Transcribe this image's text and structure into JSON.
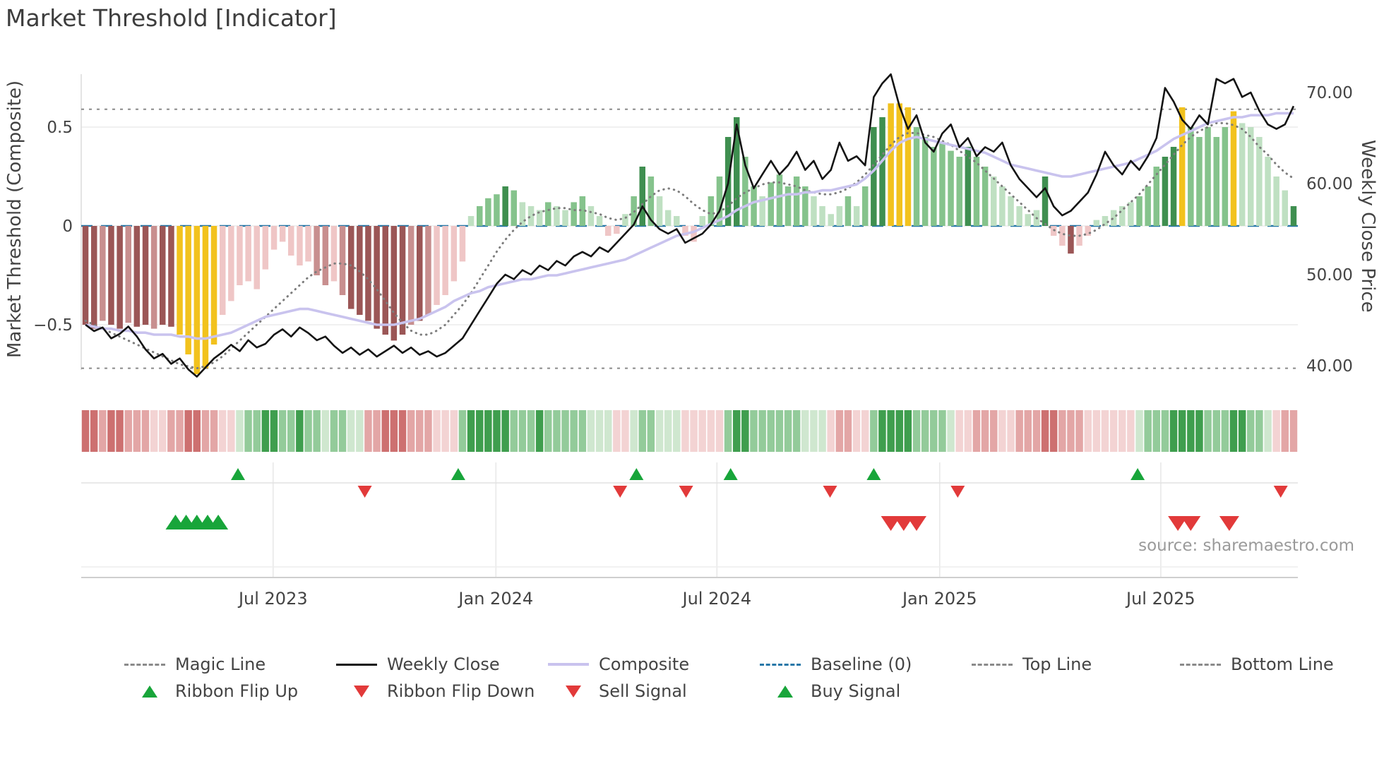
{
  "page": {
    "title": "Market Threshold [Indicator]",
    "source": "source: sharemaestro.com"
  },
  "chart_data": {
    "type": "mixed",
    "title": "Market Threshold [Indicator]",
    "x_axis": {
      "tick_weeks": [
        21.9,
        47.9,
        73.7,
        99.7,
        125.5
      ],
      "tick_labels": [
        "Jul 2023",
        "Jan 2024",
        "Jul 2024",
        "Jan 2025",
        "Jul 2025"
      ]
    },
    "left_axis": {
      "label": "Market Threshold (Composite)",
      "ticks": [
        0.5,
        0,
        -0.5
      ],
      "tick_labels": [
        "0.5",
        "0",
        "−0.5"
      ]
    },
    "right_axis": {
      "label": "Weekly Close Price",
      "ticks": [
        70,
        60,
        50,
        40
      ],
      "tick_labels": [
        "70.00",
        "60.00",
        "50.00",
        "40.00"
      ]
    },
    "top_line": 0.59,
    "bottom_line": -0.72,
    "baseline": 0,
    "bars": {
      "values": [
        -0.5,
        -0.52,
        -0.48,
        -0.5,
        -0.52,
        -0.49,
        -0.51,
        -0.5,
        -0.52,
        -0.5,
        -0.51,
        -0.55,
        -0.65,
        -0.75,
        -0.72,
        -0.6,
        -0.45,
        -0.38,
        -0.3,
        -0.28,
        -0.32,
        -0.22,
        -0.12,
        -0.08,
        -0.15,
        -0.2,
        -0.18,
        -0.25,
        -0.3,
        -0.28,
        -0.35,
        -0.42,
        -0.45,
        -0.48,
        -0.52,
        -0.55,
        -0.58,
        -0.55,
        -0.5,
        -0.48,
        -0.45,
        -0.4,
        -0.35,
        -0.28,
        -0.18,
        0.05,
        0.1,
        0.14,
        0.16,
        0.2,
        0.18,
        0.12,
        0.1,
        0.08,
        0.12,
        0.1,
        0.08,
        0.12,
        0.15,
        0.1,
        0.05,
        -0.05,
        -0.04,
        0.06,
        0.15,
        0.3,
        0.25,
        0.15,
        0.08,
        0.05,
        -0.05,
        -0.08,
        0.05,
        0.15,
        0.25,
        0.45,
        0.55,
        0.35,
        0.2,
        0.15,
        0.22,
        0.26,
        0.2,
        0.25,
        0.2,
        0.15,
        0.1,
        0.06,
        0.1,
        0.15,
        0.1,
        0.2,
        0.5,
        0.55,
        0.62,
        0.62,
        0.6,
        0.5,
        0.45,
        0.4,
        0.42,
        0.38,
        0.35,
        0.4,
        0.35,
        0.3,
        0.25,
        0.2,
        0.15,
        0.1,
        0.06,
        0.08,
        0.25,
        -0.05,
        -0.1,
        -0.14,
        -0.1,
        -0.05,
        0.03,
        0.05,
        0.08,
        0.1,
        0.12,
        0.15,
        0.2,
        0.3,
        0.35,
        0.4,
        0.6,
        0.5,
        0.45,
        0.5,
        0.45,
        0.5,
        0.58,
        0.52,
        0.5,
        0.45,
        0.35,
        0.25,
        0.18,
        0.1
      ],
      "colors": [
        "r3",
        "r3",
        "r2",
        "r3",
        "r3",
        "r2",
        "r3",
        "r3",
        "r2",
        "r3",
        "r3",
        "y",
        "y",
        "y",
        "y",
        "y",
        "r1",
        "r1",
        "r1",
        "r1",
        "r1",
        "r1",
        "r1",
        "r1",
        "r1",
        "r1",
        "r1",
        "r2",
        "r2",
        "r1",
        "r2",
        "r3",
        "r3",
        "r3",
        "r3",
        "r3",
        "r3",
        "r3",
        "r2",
        "r3",
        "r2",
        "r1",
        "r1",
        "r1",
        "r1",
        "g1",
        "g2",
        "g2",
        "g2",
        "g3",
        "g2",
        "g1",
        "g1",
        "g1",
        "g2",
        "g1",
        "g1",
        "g2",
        "g2",
        "g1",
        "g1",
        "r1",
        "r1",
        "g1",
        "g2",
        "g3",
        "g2",
        "g1",
        "g1",
        "g1",
        "r1",
        "r1",
        "g1",
        "g2",
        "g2",
        "g3",
        "g3",
        "g2",
        "g2",
        "g1",
        "g2",
        "g2",
        "g2",
        "g2",
        "g2",
        "g1",
        "g1",
        "g1",
        "g1",
        "g2",
        "g1",
        "g2",
        "g3",
        "g3",
        "y",
        "y",
        "y",
        "g2",
        "g2",
        "g2",
        "g2",
        "g2",
        "g2",
        "g3",
        "g2",
        "g2",
        "g1",
        "g1",
        "g1",
        "g1",
        "g1",
        "g1",
        "g3",
        "r1",
        "r1",
        "r3",
        "r1",
        "r1",
        "g1",
        "g1",
        "g1",
        "g1",
        "g1",
        "g2",
        "g2",
        "g2",
        "g3",
        "g3",
        "y",
        "g2",
        "g2",
        "g2",
        "g2",
        "g2",
        "y",
        "g1",
        "g1",
        "g1",
        "g1",
        "g1",
        "g1",
        "g3"
      ]
    },
    "weekly_close": [
      44.5,
      43.8,
      44.2,
      43.0,
      43.5,
      44.3,
      43.2,
      41.8,
      40.8,
      41.3,
      40.2,
      40.8,
      39.6,
      38.8,
      39.8,
      40.8,
      41.5,
      42.3,
      41.6,
      42.8,
      42.0,
      42.4,
      43.4,
      44.0,
      43.2,
      44.2,
      43.6,
      42.8,
      43.2,
      42.2,
      41.4,
      42.0,
      41.2,
      41.8,
      41.0,
      41.6,
      42.2,
      41.4,
      42.0,
      41.2,
      41.6,
      41.0,
      41.4,
      42.2,
      43.0,
      44.5,
      46.0,
      47.5,
      49.0,
      50.0,
      49.5,
      50.5,
      50.0,
      51.0,
      50.5,
      51.5,
      51.0,
      52.0,
      52.5,
      52.0,
      53.0,
      52.5,
      53.5,
      54.5,
      55.5,
      57.5,
      56.0,
      55.0,
      54.5,
      55.0,
      53.5,
      54.0,
      54.5,
      55.5,
      57.0,
      60.0,
      66.5,
      62.0,
      59.5,
      61.0,
      62.5,
      61.0,
      62.0,
      63.5,
      61.5,
      62.5,
      60.5,
      61.5,
      64.5,
      62.5,
      63.0,
      62.0,
      69.5,
      71.0,
      72.0,
      68.5,
      66.0,
      67.5,
      64.5,
      63.5,
      65.5,
      66.5,
      64.0,
      65.0,
      63.0,
      64.0,
      63.5,
      64.5,
      62.0,
      60.5,
      59.5,
      58.5,
      59.5,
      57.5,
      56.5,
      57.0,
      58.0,
      59.0,
      61.0,
      63.5,
      62.0,
      61.0,
      62.5,
      61.5,
      63.0,
      65.0,
      70.5,
      69.0,
      67.0,
      66.0,
      67.5,
      66.5,
      71.5,
      71.0,
      71.5,
      69.5,
      70.0,
      68.0,
      66.5,
      66.0,
      66.5,
      68.5
    ],
    "composite": [
      -0.5,
      -0.51,
      -0.52,
      -0.52,
      -0.53,
      -0.53,
      -0.54,
      -0.54,
      -0.55,
      -0.55,
      -0.55,
      -0.56,
      -0.56,
      -0.57,
      -0.57,
      -0.56,
      -0.55,
      -0.54,
      -0.52,
      -0.5,
      -0.48,
      -0.46,
      -0.45,
      -0.44,
      -0.43,
      -0.42,
      -0.42,
      -0.43,
      -0.44,
      -0.45,
      -0.46,
      -0.47,
      -0.48,
      -0.49,
      -0.5,
      -0.5,
      -0.5,
      -0.49,
      -0.48,
      -0.47,
      -0.45,
      -0.43,
      -0.41,
      -0.38,
      -0.36,
      -0.34,
      -0.33,
      -0.31,
      -0.3,
      -0.29,
      -0.28,
      -0.27,
      -0.27,
      -0.26,
      -0.25,
      -0.25,
      -0.24,
      -0.23,
      -0.22,
      -0.21,
      -0.2,
      -0.19,
      -0.18,
      -0.17,
      -0.15,
      -0.13,
      -0.11,
      -0.09,
      -0.07,
      -0.05,
      -0.04,
      -0.03,
      -0.01,
      0.01,
      0.03,
      0.05,
      0.08,
      0.1,
      0.12,
      0.13,
      0.14,
      0.15,
      0.16,
      0.16,
      0.17,
      0.17,
      0.18,
      0.18,
      0.19,
      0.2,
      0.21,
      0.24,
      0.28,
      0.33,
      0.38,
      0.42,
      0.44,
      0.45,
      0.44,
      0.43,
      0.42,
      0.41,
      0.4,
      0.39,
      0.38,
      0.37,
      0.35,
      0.33,
      0.31,
      0.3,
      0.29,
      0.28,
      0.27,
      0.26,
      0.25,
      0.25,
      0.26,
      0.27,
      0.28,
      0.29,
      0.3,
      0.31,
      0.32,
      0.34,
      0.36,
      0.38,
      0.41,
      0.44,
      0.46,
      0.48,
      0.5,
      0.52,
      0.53,
      0.54,
      0.55,
      0.55,
      0.56,
      0.56,
      0.56,
      0.57,
      0.57,
      0.57
    ],
    "magic_line": [
      -0.48,
      -0.5,
      -0.52,
      -0.54,
      -0.56,
      -0.58,
      -0.6,
      -0.62,
      -0.64,
      -0.66,
      -0.68,
      -0.7,
      -0.71,
      -0.72,
      -0.71,
      -0.69,
      -0.66,
      -0.62,
      -0.58,
      -0.54,
      -0.5,
      -0.46,
      -0.42,
      -0.38,
      -0.34,
      -0.3,
      -0.26,
      -0.23,
      -0.21,
      -0.19,
      -0.19,
      -0.2,
      -0.23,
      -0.27,
      -0.32,
      -0.38,
      -0.44,
      -0.49,
      -0.53,
      -0.55,
      -0.55,
      -0.53,
      -0.5,
      -0.45,
      -0.4,
      -0.34,
      -0.27,
      -0.2,
      -0.13,
      -0.07,
      -0.02,
      0.02,
      0.05,
      0.07,
      0.08,
      0.09,
      0.09,
      0.08,
      0.08,
      0.07,
      0.06,
      0.04,
      0.03,
      0.04,
      0.07,
      0.11,
      0.15,
      0.18,
      0.19,
      0.18,
      0.15,
      0.11,
      0.08,
      0.06,
      0.07,
      0.1,
      0.14,
      0.17,
      0.19,
      0.21,
      0.22,
      0.22,
      0.21,
      0.2,
      0.18,
      0.17,
      0.16,
      0.16,
      0.17,
      0.19,
      0.22,
      0.26,
      0.31,
      0.36,
      0.41,
      0.45,
      0.47,
      0.47,
      0.46,
      0.45,
      0.43,
      0.41,
      0.38,
      0.35,
      0.32,
      0.28,
      0.24,
      0.2,
      0.16,
      0.12,
      0.08,
      0.04,
      0.01,
      -0.02,
      -0.04,
      -0.05,
      -0.05,
      -0.04,
      -0.02,
      0.01,
      0.04,
      0.08,
      0.12,
      0.16,
      0.21,
      0.26,
      0.31,
      0.36,
      0.41,
      0.45,
      0.48,
      0.5,
      0.52,
      0.52,
      0.51,
      0.49,
      0.45,
      0.4,
      0.36,
      0.31,
      0.27,
      0.24
    ],
    "ribbon": [
      "r3",
      "r3",
      "r2",
      "r3",
      "r3",
      "r2",
      "r2",
      "r2",
      "r1",
      "r1",
      "r2",
      "r2",
      "r3",
      "r3",
      "r2",
      "r2",
      "r1",
      "r1",
      "g1",
      "g2",
      "g2",
      "g3",
      "g3",
      "g2",
      "g2",
      "g3",
      "g2",
      "g2",
      "g1",
      "g2",
      "g2",
      "g1",
      "g1",
      "r2",
      "r2",
      "r3",
      "r3",
      "r3",
      "r2",
      "r2",
      "r2",
      "r1",
      "r1",
      "r1",
      "g2",
      "g3",
      "g3",
      "g3",
      "g3",
      "g3",
      "g2",
      "g2",
      "g2",
      "g3",
      "g2",
      "g2",
      "g2",
      "g2",
      "g2",
      "g1",
      "g1",
      "g1",
      "r1",
      "r1",
      "g1",
      "g2",
      "g2",
      "g1",
      "g1",
      "g1",
      "r1",
      "r1",
      "r1",
      "r1",
      "r1",
      "g2",
      "g3",
      "g3",
      "g2",
      "g2",
      "g2",
      "g2",
      "g2",
      "g2",
      "g1",
      "g1",
      "g1",
      "r1",
      "r2",
      "r2",
      "r1",
      "r1",
      "g2",
      "g3",
      "g3",
      "g3",
      "g3",
      "g2",
      "g2",
      "g2",
      "g2",
      "g1",
      "r1",
      "r1",
      "r2",
      "r2",
      "r2",
      "r1",
      "r1",
      "r2",
      "r2",
      "r2",
      "r3",
      "r3",
      "r2",
      "r2",
      "r2",
      "r1",
      "r1",
      "r1",
      "r1",
      "r1",
      "r1",
      "g1",
      "g2",
      "g2",
      "g2",
      "g3",
      "g3",
      "g3",
      "g3",
      "g2",
      "g2",
      "g2",
      "g3",
      "g3",
      "g2",
      "g2",
      "g1",
      "r1",
      "r2",
      "r2"
    ],
    "markers": {
      "ribbon_flip_up_weeks": [
        17.8,
        43.5,
        64.3,
        75.3,
        92.0,
        122.8
      ],
      "ribbon_flip_down_weeks": [
        32.6,
        62.4,
        70.1,
        86.9,
        101.8,
        139.5
      ],
      "buy_signal_weeks": [
        10.5,
        11.75,
        13.0,
        14.25,
        15.5
      ],
      "sell_signal_weeks": [
        94.0,
        95.5,
        97.0,
        127.5,
        129.0,
        133.5
      ]
    },
    "colors": {
      "bar": {
        "r1": "#efc6c6",
        "r2": "#c88f8f",
        "r3": "#9b5656",
        "g1": "#bfe0c2",
        "g2": "#85c38c",
        "g3": "#3f8f50",
        "y": "#f2c21d"
      },
      "ribbon": {
        "r1": "#f3d3d3",
        "r2": "#e3a6a6",
        "r3": "#cd7070",
        "g1": "#cfe7cf",
        "g2": "#93cb9a",
        "g3": "#3f9e4e"
      },
      "weekly_close": "#141414",
      "composite": "#c9c3ee",
      "magic": "#7d7d7d",
      "baseline": "#2878a8",
      "guide": "#8a8a8a",
      "flip_up": "#18a53a",
      "flip_down": "#e23a3a"
    }
  },
  "legend": {
    "row1": [
      {
        "label": "Magic Line",
        "type": "dash-gray"
      },
      {
        "label": "Weekly Close",
        "type": "solid-black"
      },
      {
        "label": "Composite",
        "type": "solid-purple"
      },
      {
        "label": "Baseline (0)",
        "type": "dash-blue"
      },
      {
        "label": "Top Line",
        "type": "dash-gray"
      },
      {
        "label": "Bottom Line",
        "type": "dash-gray"
      }
    ],
    "row2": [
      {
        "label": "Ribbon Flip Up",
        "type": "tri-up-green"
      },
      {
        "label": "Ribbon Flip Down",
        "type": "tri-down-red"
      },
      {
        "label": "Sell Signal",
        "type": "tri-down-red"
      },
      {
        "label": "Buy Signal",
        "type": "tri-up-green"
      }
    ]
  }
}
